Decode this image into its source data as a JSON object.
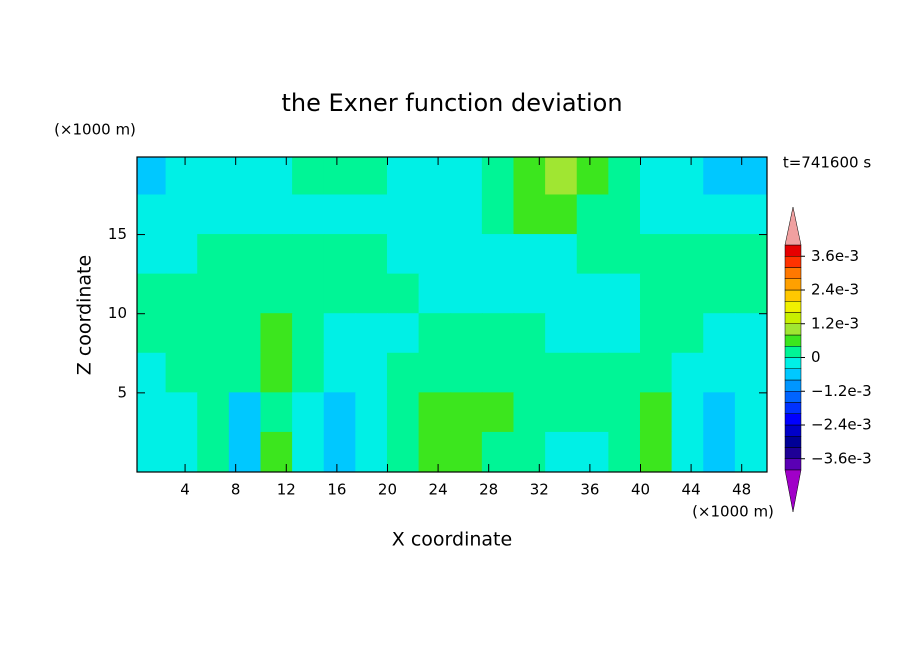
{
  "chart_data": {
    "type": "contour",
    "title": "the Exner function deviation",
    "xlabel": "X coordinate",
    "ylabel": "Z coordinate",
    "x_unit_label": "(×1000 m)",
    "y_unit_label": "(×1000 m)",
    "annotation": "t=741600 s",
    "xlim": [
      0.2,
      50
    ],
    "ylim": [
      0,
      19.9
    ],
    "xticks": [
      4,
      8,
      12,
      16,
      20,
      24,
      28,
      32,
      36,
      40,
      44,
      48
    ],
    "yticks": [
      5,
      10,
      15
    ],
    "x": [
      1.25,
      3.75,
      6.25,
      8.75,
      11.25,
      13.75,
      16.25,
      18.75,
      21.25,
      23.75,
      26.25,
      28.75,
      31.25,
      33.75,
      36.25,
      38.75,
      41.25,
      43.75,
      46.25,
      48.75
    ],
    "y": [
      18.75,
      16.25,
      13.75,
      11.25,
      8.75,
      6.25,
      3.75,
      1.25
    ],
    "z": [
      [
        -0.0006,
        -0.0002,
        -0.0002,
        -0.0002,
        -0.0002,
        0.0002,
        0.0002,
        0.0002,
        -0.0002,
        -0.0002,
        -0.0002,
        0.0002,
        0.0006,
        0.001,
        0.0006,
        0.0002,
        -0.0002,
        -0.0002,
        -0.0006,
        -0.0006
      ],
      [
        -0.0002,
        -0.0002,
        -0.0002,
        -0.0002,
        -0.0002,
        -0.0002,
        -0.0002,
        -0.0002,
        -0.0002,
        -0.0002,
        -0.0002,
        0.0002,
        0.0006,
        0.0006,
        0.0002,
        0.0002,
        -0.0002,
        -0.0002,
        -0.0002,
        -0.0002
      ],
      [
        -0.0002,
        -0.0002,
        0.0002,
        0.0002,
        0.0002,
        0.0002,
        0.0002,
        0.0002,
        -0.0002,
        -0.0002,
        -0.0002,
        -0.0002,
        -0.0002,
        -0.0002,
        0.0002,
        0.0002,
        0.0002,
        0.0002,
        0.0002,
        0.0002
      ],
      [
        0.0002,
        0.0002,
        0.0002,
        0.0002,
        0.0002,
        0.0002,
        0.0002,
        0.0002,
        0.0002,
        -0.0002,
        -0.0002,
        -0.0002,
        -0.0002,
        -0.0002,
        -0.0002,
        -0.0002,
        0.0002,
        0.0002,
        0.0002,
        0.0002
      ],
      [
        0.0002,
        0.0002,
        0.0002,
        0.0002,
        0.0006,
        0.0002,
        -0.0002,
        -0.0002,
        -0.0002,
        0.0002,
        0.0002,
        0.0002,
        0.0002,
        -0.0002,
        -0.0002,
        -0.0002,
        0.0002,
        0.0002,
        -0.0002,
        -0.0002
      ],
      [
        -0.0002,
        0.0002,
        0.0002,
        0.0002,
        0.0006,
        0.0002,
        -0.0002,
        -0.0002,
        0.0002,
        0.0002,
        0.0002,
        0.0002,
        0.0002,
        0.0002,
        0.0002,
        0.0002,
        0.0002,
        -0.0002,
        -0.0002,
        -0.0002
      ],
      [
        -0.0002,
        -0.0002,
        0.0002,
        -0.0006,
        0.0002,
        -0.0002,
        -0.0006,
        -0.0002,
        0.0002,
        0.0006,
        0.0006,
        0.0006,
        0.0002,
        0.0002,
        0.0002,
        0.0002,
        0.0006,
        -0.0002,
        -0.0006,
        -0.0002
      ],
      [
        -0.0002,
        -0.0002,
        0.0002,
        -0.0006,
        0.0006,
        -0.0002,
        -0.0006,
        -0.0002,
        0.0002,
        0.0006,
        0.0006,
        0.0002,
        0.0002,
        -0.0002,
        -0.0002,
        0.0002,
        0.0006,
        -0.0002,
        -0.0006,
        -0.0002
      ]
    ],
    "colorbar": {
      "levels": [
        -0.004,
        -0.0036,
        -0.0032,
        -0.0028,
        -0.0024,
        -0.002,
        -0.0016,
        -0.0012,
        -0.0008,
        -0.0004,
        0,
        0.0004,
        0.0008,
        0.0012,
        0.0016,
        0.002,
        0.0024,
        0.0028,
        0.0032,
        0.0036,
        0.004
      ],
      "colors": [
        "#5a00b4",
        "#1e0096",
        "#000096",
        "#0000c8",
        "#0000ff",
        "#0032ff",
        "#0064ff",
        "#0096ff",
        "#00c8ff",
        "#00f0e6",
        "#00f596",
        "#3ce61e",
        "#a0e632",
        "#c8f000",
        "#f0f000",
        "#ffc800",
        "#ffa000",
        "#ff7800",
        "#ff3200",
        "#e60000"
      ],
      "under_color": "#a000c8",
      "over_color": "#f0a0a0",
      "ticks": [
        {
          "value": 0.0036,
          "label": "3.6e-3"
        },
        {
          "value": 0.0024,
          "label": "2.4e-3"
        },
        {
          "value": 0.0012,
          "label": "1.2e-3"
        },
        0,
        {
          "value": -0.0012,
          "label": "−1.2e-3"
        },
        {
          "value": -0.0024,
          "label": "−2.4e-3"
        },
        {
          "value": -0.0036,
          "label": "−3.6e-3"
        }
      ]
    }
  }
}
